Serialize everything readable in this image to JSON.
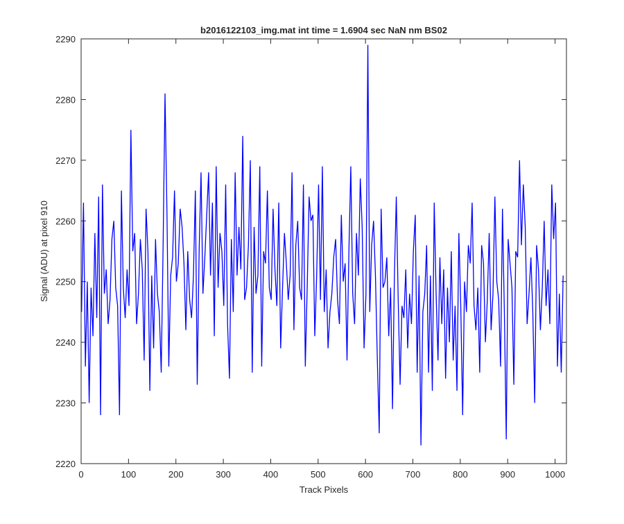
{
  "chart_data": {
    "type": "line",
    "title": "b2016122103_img.mat int time = 1.6904 sec  NaN nm BS02",
    "xlabel": "Track Pixels",
    "ylabel": "Signal (ADU) at pixel 910",
    "xlim": [
      0,
      1024
    ],
    "ylim": [
      2220,
      2290
    ],
    "xticks": [
      0,
      100,
      200,
      300,
      400,
      500,
      600,
      700,
      800,
      900,
      1000
    ],
    "yticks": [
      2220,
      2230,
      2240,
      2250,
      2260,
      2270,
      2280,
      2290
    ],
    "grid": false,
    "legend": "none",
    "series_color": "#0000ff",
    "series": [
      {
        "x_start": 1,
        "x_step": 4,
        "values": [
          2245,
          2263,
          2236,
          2250,
          2230,
          2249,
          2241,
          2258,
          2244,
          2264,
          2228,
          2266,
          2248,
          2252,
          2243,
          2247,
          2257,
          2260,
          2249,
          2246,
          2228,
          2265,
          2249,
          2244,
          2252,
          2246,
          2275,
          2255,
          2258,
          2243,
          2248,
          2257,
          2252,
          2237,
          2262,
          2255,
          2232,
          2251,
          2239,
          2257,
          2248,
          2245,
          2235,
          2256,
          2281,
          2262,
          2236,
          2251,
          2254,
          2265,
          2250,
          2253,
          2262,
          2259,
          2253,
          2242,
          2255,
          2247,
          2244,
          2251,
          2265,
          2233,
          2255,
          2268,
          2248,
          2254,
          2261,
          2268,
          2251,
          2263,
          2241,
          2269,
          2249,
          2258,
          2255,
          2246,
          2266,
          2243,
          2234,
          2257,
          2245,
          2268,
          2251,
          2259,
          2252,
          2274,
          2247,
          2249,
          2256,
          2270,
          2235,
          2259,
          2248,
          2251,
          2269,
          2236,
          2255,
          2253,
          2265,
          2249,
          2247,
          2262,
          2252,
          2246,
          2263,
          2239,
          2249,
          2258,
          2253,
          2247,
          2251,
          2268,
          2242,
          2256,
          2260,
          2249,
          2247,
          2266,
          2236,
          2249,
          2264,
          2260,
          2261,
          2241,
          2251,
          2266,
          2247,
          2269,
          2245,
          2252,
          2239,
          2245,
          2248,
          2254,
          2257,
          2247,
          2243,
          2261,
          2250,
          2253,
          2237,
          2255,
          2269,
          2248,
          2243,
          2258,
          2251,
          2267,
          2259,
          2239,
          2248,
          2289,
          2245,
          2256,
          2260,
          2251,
          2237,
          2225,
          2262,
          2249,
          2250,
          2254,
          2241,
          2249,
          2229,
          2251,
          2264,
          2247,
          2233,
          2246,
          2244,
          2252,
          2239,
          2248,
          2243,
          2255,
          2261,
          2235,
          2251,
          2223,
          2245,
          2248,
          2256,
          2235,
          2251,
          2232,
          2263,
          2248,
          2237,
          2254,
          2243,
          2252,
          2234,
          2249,
          2240,
          2255,
          2237,
          2246,
          2232,
          2258,
          2246,
          2228,
          2250,
          2245,
          2256,
          2253,
          2263,
          2246,
          2242,
          2249,
          2235,
          2256,
          2253,
          2240,
          2247,
          2258,
          2242,
          2248,
          2264,
          2250,
          2247,
          2236,
          2262,
          2245,
          2224,
          2257,
          2253,
          2249,
          2233,
          2255,
          2254,
          2270,
          2256,
          2266,
          2259,
          2243,
          2248,
          2254,
          2245,
          2230,
          2256,
          2252,
          2242,
          2249,
          2260,
          2246,
          2252,
          2243,
          2266,
          2257,
          2263,
          2236,
          2248,
          2235,
          2251
        ]
      }
    ]
  }
}
